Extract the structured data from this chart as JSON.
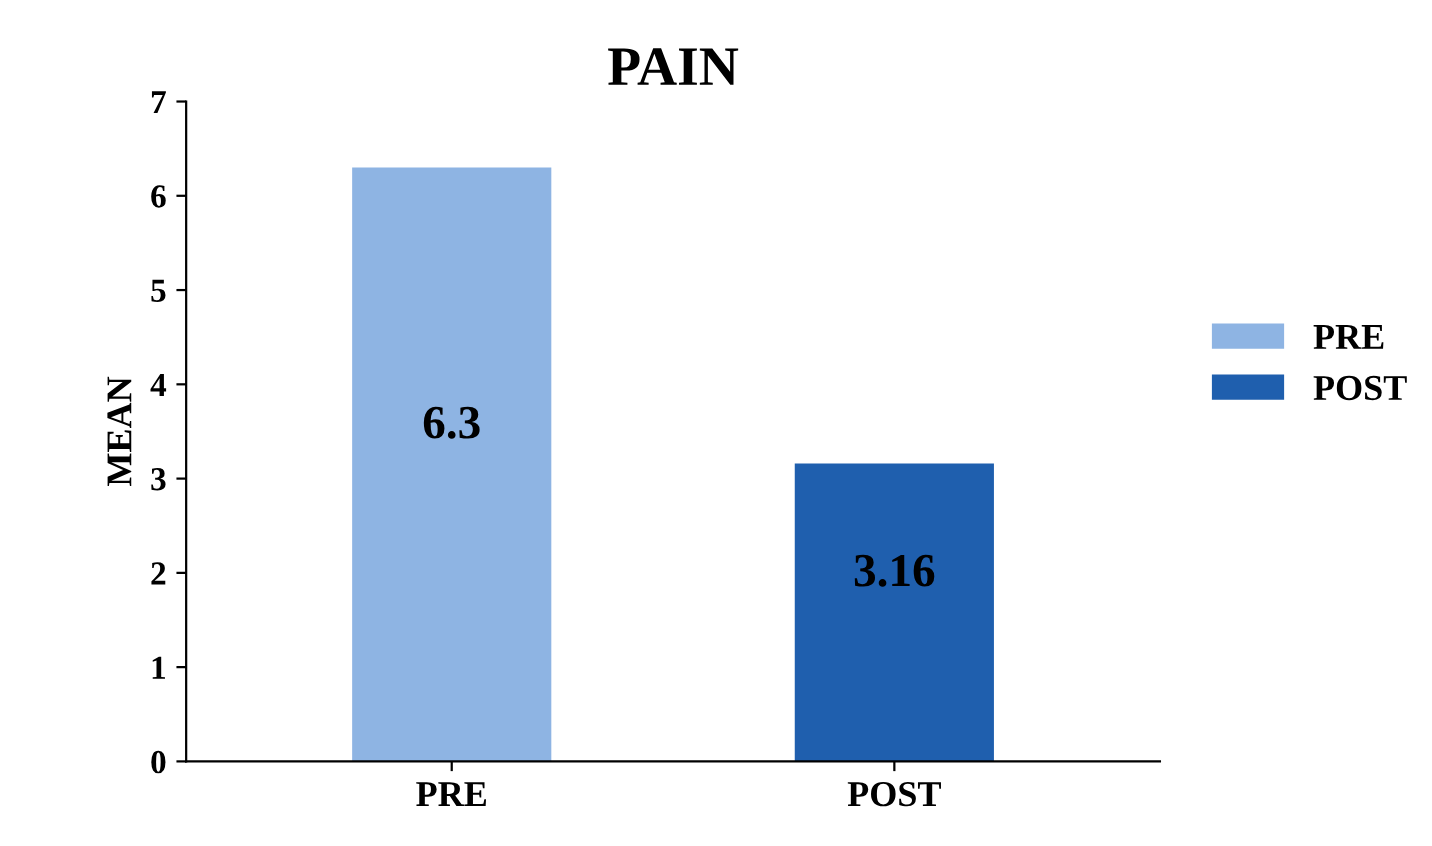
{
  "chart_data": {
    "type": "bar",
    "title": "PAIN",
    "ylabel": "MEAN",
    "categories": [
      "PRE",
      "POST"
    ],
    "series": [
      {
        "name": "PRE",
        "color": "#8eb4e3",
        "values": [
          6.3,
          null
        ]
      },
      {
        "name": "POST",
        "color": "#1f5fae",
        "values": [
          null,
          3.16
        ]
      }
    ],
    "ylim": [
      0,
      7
    ],
    "yticks": [
      0,
      1,
      2,
      3,
      4,
      5,
      6,
      7
    ],
    "grid": false,
    "legend": "right",
    "data_labels": true
  }
}
